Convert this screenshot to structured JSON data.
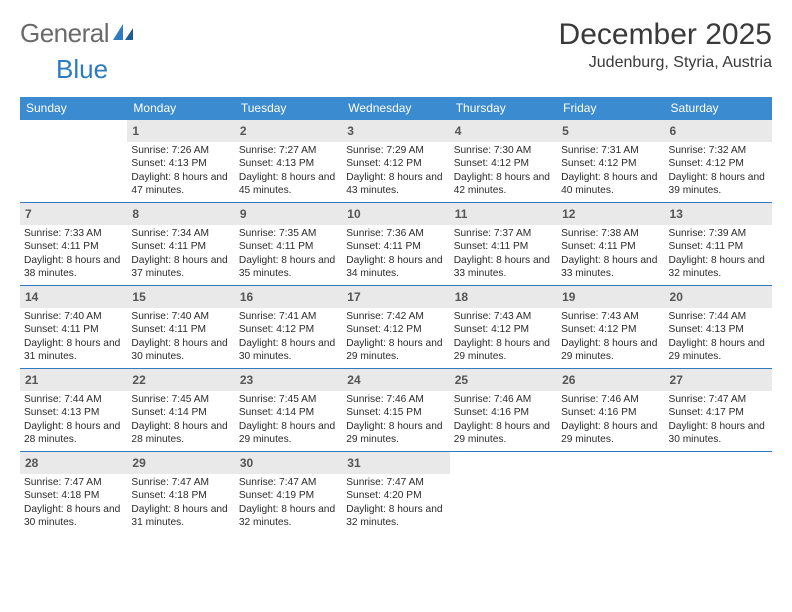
{
  "logo": {
    "text1": "General",
    "text2": "Blue"
  },
  "title": "December 2025",
  "subtitle": "Judenburg, Styria, Austria",
  "colors": {
    "header_bg": "#3b8bd0",
    "header_text": "#ffffff",
    "daynum_bg": "#e9e9e9",
    "daynum_text": "#555555",
    "border": "#2e7bc0",
    "body_text": "#2b2b2b",
    "title_text": "#3a3a3a",
    "logo_gray": "#6a6a6a",
    "logo_blue": "#2e7bc0"
  },
  "weekdays": [
    "Sunday",
    "Monday",
    "Tuesday",
    "Wednesday",
    "Thursday",
    "Friday",
    "Saturday"
  ],
  "weeks": [
    [
      {
        "empty": true
      },
      {
        "day": "1",
        "sunrise": "Sunrise: 7:26 AM",
        "sunset": "Sunset: 4:13 PM",
        "daylight": "Daylight: 8 hours and 47 minutes."
      },
      {
        "day": "2",
        "sunrise": "Sunrise: 7:27 AM",
        "sunset": "Sunset: 4:13 PM",
        "daylight": "Daylight: 8 hours and 45 minutes."
      },
      {
        "day": "3",
        "sunrise": "Sunrise: 7:29 AM",
        "sunset": "Sunset: 4:12 PM",
        "daylight": "Daylight: 8 hours and 43 minutes."
      },
      {
        "day": "4",
        "sunrise": "Sunrise: 7:30 AM",
        "sunset": "Sunset: 4:12 PM",
        "daylight": "Daylight: 8 hours and 42 minutes."
      },
      {
        "day": "5",
        "sunrise": "Sunrise: 7:31 AM",
        "sunset": "Sunset: 4:12 PM",
        "daylight": "Daylight: 8 hours and 40 minutes."
      },
      {
        "day": "6",
        "sunrise": "Sunrise: 7:32 AM",
        "sunset": "Sunset: 4:12 PM",
        "daylight": "Daylight: 8 hours and 39 minutes."
      }
    ],
    [
      {
        "day": "7",
        "sunrise": "Sunrise: 7:33 AM",
        "sunset": "Sunset: 4:11 PM",
        "daylight": "Daylight: 8 hours and 38 minutes."
      },
      {
        "day": "8",
        "sunrise": "Sunrise: 7:34 AM",
        "sunset": "Sunset: 4:11 PM",
        "daylight": "Daylight: 8 hours and 37 minutes."
      },
      {
        "day": "9",
        "sunrise": "Sunrise: 7:35 AM",
        "sunset": "Sunset: 4:11 PM",
        "daylight": "Daylight: 8 hours and 35 minutes."
      },
      {
        "day": "10",
        "sunrise": "Sunrise: 7:36 AM",
        "sunset": "Sunset: 4:11 PM",
        "daylight": "Daylight: 8 hours and 34 minutes."
      },
      {
        "day": "11",
        "sunrise": "Sunrise: 7:37 AM",
        "sunset": "Sunset: 4:11 PM",
        "daylight": "Daylight: 8 hours and 33 minutes."
      },
      {
        "day": "12",
        "sunrise": "Sunrise: 7:38 AM",
        "sunset": "Sunset: 4:11 PM",
        "daylight": "Daylight: 8 hours and 33 minutes."
      },
      {
        "day": "13",
        "sunrise": "Sunrise: 7:39 AM",
        "sunset": "Sunset: 4:11 PM",
        "daylight": "Daylight: 8 hours and 32 minutes."
      }
    ],
    [
      {
        "day": "14",
        "sunrise": "Sunrise: 7:40 AM",
        "sunset": "Sunset: 4:11 PM",
        "daylight": "Daylight: 8 hours and 31 minutes."
      },
      {
        "day": "15",
        "sunrise": "Sunrise: 7:40 AM",
        "sunset": "Sunset: 4:11 PM",
        "daylight": "Daylight: 8 hours and 30 minutes."
      },
      {
        "day": "16",
        "sunrise": "Sunrise: 7:41 AM",
        "sunset": "Sunset: 4:12 PM",
        "daylight": "Daylight: 8 hours and 30 minutes."
      },
      {
        "day": "17",
        "sunrise": "Sunrise: 7:42 AM",
        "sunset": "Sunset: 4:12 PM",
        "daylight": "Daylight: 8 hours and 29 minutes."
      },
      {
        "day": "18",
        "sunrise": "Sunrise: 7:43 AM",
        "sunset": "Sunset: 4:12 PM",
        "daylight": "Daylight: 8 hours and 29 minutes."
      },
      {
        "day": "19",
        "sunrise": "Sunrise: 7:43 AM",
        "sunset": "Sunset: 4:12 PM",
        "daylight": "Daylight: 8 hours and 29 minutes."
      },
      {
        "day": "20",
        "sunrise": "Sunrise: 7:44 AM",
        "sunset": "Sunset: 4:13 PM",
        "daylight": "Daylight: 8 hours and 29 minutes."
      }
    ],
    [
      {
        "day": "21",
        "sunrise": "Sunrise: 7:44 AM",
        "sunset": "Sunset: 4:13 PM",
        "daylight": "Daylight: 8 hours and 28 minutes."
      },
      {
        "day": "22",
        "sunrise": "Sunrise: 7:45 AM",
        "sunset": "Sunset: 4:14 PM",
        "daylight": "Daylight: 8 hours and 28 minutes."
      },
      {
        "day": "23",
        "sunrise": "Sunrise: 7:45 AM",
        "sunset": "Sunset: 4:14 PM",
        "daylight": "Daylight: 8 hours and 29 minutes."
      },
      {
        "day": "24",
        "sunrise": "Sunrise: 7:46 AM",
        "sunset": "Sunset: 4:15 PM",
        "daylight": "Daylight: 8 hours and 29 minutes."
      },
      {
        "day": "25",
        "sunrise": "Sunrise: 7:46 AM",
        "sunset": "Sunset: 4:16 PM",
        "daylight": "Daylight: 8 hours and 29 minutes."
      },
      {
        "day": "26",
        "sunrise": "Sunrise: 7:46 AM",
        "sunset": "Sunset: 4:16 PM",
        "daylight": "Daylight: 8 hours and 29 minutes."
      },
      {
        "day": "27",
        "sunrise": "Sunrise: 7:47 AM",
        "sunset": "Sunset: 4:17 PM",
        "daylight": "Daylight: 8 hours and 30 minutes."
      }
    ],
    [
      {
        "day": "28",
        "sunrise": "Sunrise: 7:47 AM",
        "sunset": "Sunset: 4:18 PM",
        "daylight": "Daylight: 8 hours and 30 minutes."
      },
      {
        "day": "29",
        "sunrise": "Sunrise: 7:47 AM",
        "sunset": "Sunset: 4:18 PM",
        "daylight": "Daylight: 8 hours and 31 minutes."
      },
      {
        "day": "30",
        "sunrise": "Sunrise: 7:47 AM",
        "sunset": "Sunset: 4:19 PM",
        "daylight": "Daylight: 8 hours and 32 minutes."
      },
      {
        "day": "31",
        "sunrise": "Sunrise: 7:47 AM",
        "sunset": "Sunset: 4:20 PM",
        "daylight": "Daylight: 8 hours and 32 minutes."
      },
      {
        "empty": true
      },
      {
        "empty": true
      },
      {
        "empty": true
      }
    ]
  ]
}
